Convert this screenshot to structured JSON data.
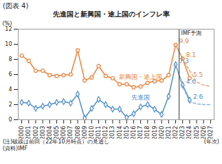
{
  "chart_data": {
    "type": "line",
    "figure_label": "(図表 4)",
    "title": "先進国と新興国・途上国のインフレ率",
    "y_label": "(%)",
    "x_label": "(年次)",
    "notes": [
      "(注)破線は前回（22年10月時点）の見通し",
      "(資料)IMF"
    ],
    "annotations": [
      {
        "text": "IMF予測",
        "x": 2022.5
      }
    ],
    "x": [
      2000,
      2001,
      2002,
      2003,
      2004,
      2005,
      2006,
      2007,
      2008,
      2009,
      2010,
      2011,
      2012,
      2013,
      2014,
      2015,
      2016,
      2017,
      2018,
      2019,
      2020,
      2021,
      2022,
      2023,
      2024,
      2025,
      2026,
      2027
    ],
    "xlim": [
      1999.5,
      2027.5
    ],
    "xticks": [
      2000,
      2001,
      2002,
      2003,
      2004,
      2005,
      2006,
      2007,
      2008,
      2009,
      2010,
      2011,
      2012,
      2013,
      2014,
      2015,
      2016,
      2017,
      2018,
      2019,
      2020,
      2021,
      2022,
      2023,
      2024,
      2025,
      2026,
      2027
    ],
    "ylim": [
      0,
      12
    ],
    "yticks": [
      0,
      2,
      4,
      6,
      8,
      10,
      12
    ],
    "grid": false,
    "data_labels": true,
    "series": [
      {
        "name": "新興国・途上国",
        "color": "#e8823a",
        "marker": "circle",
        "line_style": "solid",
        "values": [
          8.5,
          7.8,
          6.5,
          6.5,
          5.9,
          5.8,
          5.9,
          6.0,
          9.2,
          5.2,
          5.6,
          7.1,
          5.8,
          5.5,
          4.7,
          4.7,
          4.3,
          4.4,
          4.9,
          5.1,
          5.2,
          5.9,
          9.9,
          8.1,
          5.5,
          null,
          null,
          null
        ],
        "value_labels": [
          null,
          null,
          null,
          null,
          null,
          null,
          null,
          null,
          null,
          null,
          null,
          null,
          null,
          null,
          null,
          null,
          null,
          null,
          null,
          null,
          null,
          null,
          "9.9",
          "8.1",
          "5.5",
          null,
          null,
          null
        ]
      },
      {
        "name": "先進国",
        "color": "#4a8cc9",
        "marker": "diamond",
        "line_style": "solid",
        "values": [
          2.3,
          2.2,
          1.5,
          1.8,
          2.0,
          2.3,
          2.4,
          2.2,
          3.4,
          0.2,
          1.5,
          2.7,
          2.0,
          1.4,
          1.4,
          0.3,
          0.8,
          1.7,
          2.0,
          1.4,
          0.7,
          3.1,
          7.3,
          4.6,
          2.6,
          null,
          null,
          null
        ],
        "value_labels": [
          null,
          null,
          null,
          null,
          null,
          null,
          null,
          null,
          null,
          null,
          null,
          null,
          null,
          null,
          null,
          null,
          null,
          null,
          null,
          null,
          null,
          null,
          "7.3",
          "4.6",
          "2.6",
          null,
          null,
          null
        ]
      },
      {
        "color": "#e8a878",
        "line_style": "dashed",
        "values": [
          null,
          null,
          null,
          null,
          null,
          null,
          null,
          null,
          null,
          null,
          null,
          null,
          null,
          null,
          null,
          null,
          null,
          null,
          null,
          null,
          null,
          null,
          9.9,
          8.1,
          6.5,
          5.0,
          4.6,
          4.4
        ]
      },
      {
        "color": "#8cb4dc",
        "line_style": "dashed",
        "values": [
          null,
          null,
          null,
          null,
          null,
          null,
          null,
          null,
          null,
          null,
          null,
          null,
          null,
          null,
          null,
          null,
          null,
          null,
          null,
          null,
          null,
          null,
          7.3,
          4.4,
          2.4,
          2.1,
          2.0,
          2.0
        ]
      }
    ]
  }
}
